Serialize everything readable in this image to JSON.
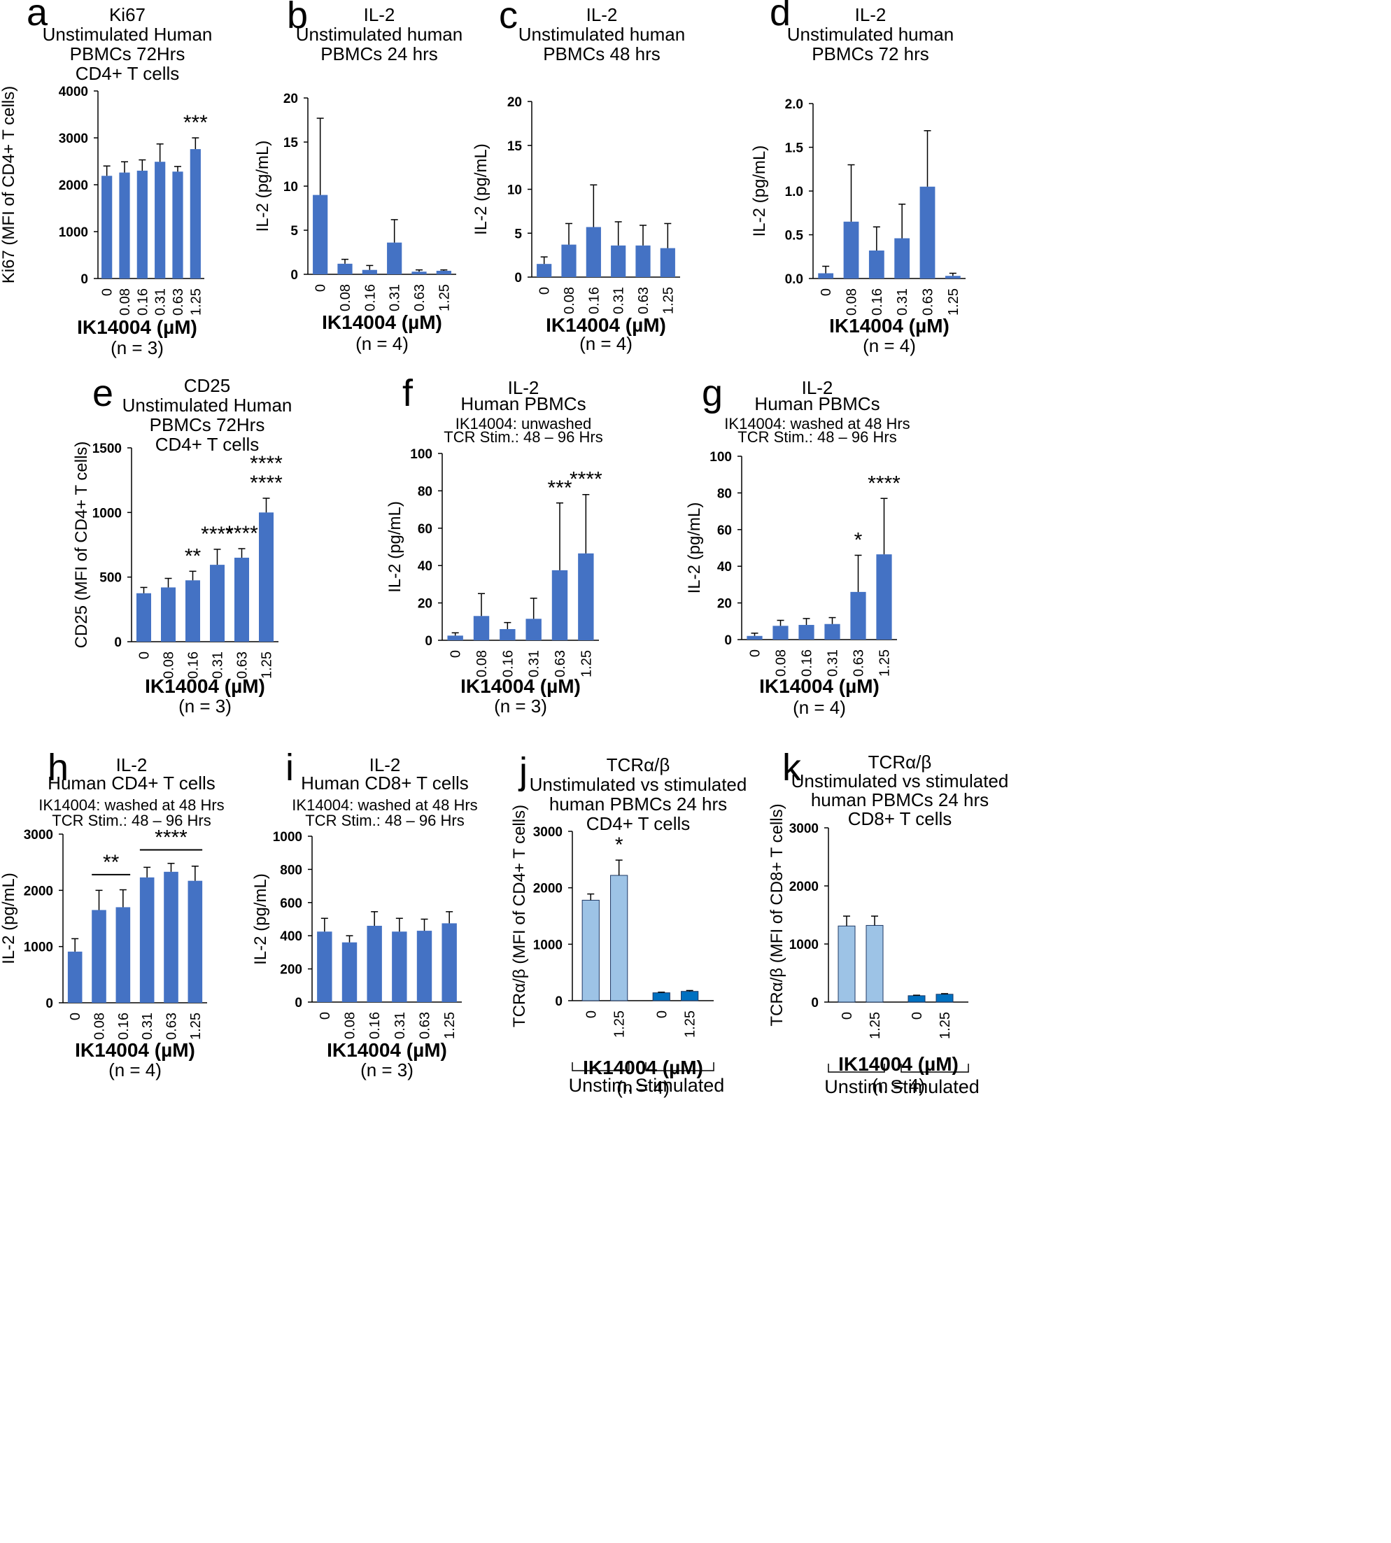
{
  "colors": {
    "bar": "#4472c4",
    "unstim_bar": "#9dc3e6",
    "stim_bar": "#0070c0",
    "axis": "#000000"
  },
  "xlabel": "IK14004 (µM)",
  "chart_data": [
    {
      "id": "a",
      "type": "bar",
      "letter": "a",
      "title": [
        "Ki67",
        "Unstimulated Human",
        "PBMCs 72Hrs",
        "CD4+  T cells"
      ],
      "ylabel": "Ki67 (MFI of CD4+ T cells)",
      "categories": [
        "0",
        "0.08",
        "0.16",
        "0.31",
        "0.63",
        "1.25"
      ],
      "values": [
        2190,
        2260,
        2300,
        2490,
        2280,
        2760
      ],
      "errors": [
        210,
        230,
        230,
        380,
        110,
        240
      ],
      "ylim": [
        0,
        4000
      ],
      "yticks": [
        "0",
        "1000",
        "2000",
        "3000",
        "4000"
      ],
      "stars": [
        {
          "index": 5,
          "text": "***"
        }
      ],
      "n": "(n = 3)"
    },
    {
      "id": "b",
      "type": "bar",
      "letter": "b",
      "title": [
        "IL-2",
        "Unstimulated human",
        "PBMCs 24 hrs"
      ],
      "ylabel": "IL-2 (pg/mL)",
      "categories": [
        "0",
        "0.08",
        "0.16",
        "0.31",
        "0.63",
        "1.25"
      ],
      "values": [
        9.0,
        1.2,
        0.5,
        3.6,
        0.3,
        0.4
      ],
      "errors": [
        8.7,
        0.5,
        0.5,
        2.6,
        0.2,
        0.1
      ],
      "ylim": [
        0,
        20
      ],
      "yticks": [
        "0",
        "5",
        "10",
        "15",
        "20"
      ],
      "stars": [],
      "n": "(n = 4)"
    },
    {
      "id": "c",
      "type": "bar",
      "letter": "c",
      "title": [
        "IL-2",
        "Unstimulated human",
        "PBMCs 48 hrs"
      ],
      "ylabel": "IL-2 (pg/mL)",
      "categories": [
        "0",
        "0.08",
        "0.16",
        "0.31",
        "0.63",
        "1.25"
      ],
      "values": [
        1.5,
        3.7,
        5.7,
        3.6,
        3.6,
        3.3
      ],
      "errors": [
        0.8,
        2.4,
        4.8,
        2.7,
        2.3,
        2.8
      ],
      "ylim": [
        0,
        20
      ],
      "yticks": [
        "0",
        "5",
        "10",
        "15",
        "20"
      ],
      "stars": [],
      "n": "(n = 4)"
    },
    {
      "id": "d",
      "type": "bar",
      "letter": "d",
      "title": [
        "IL-2",
        "Unstimulated human",
        "PBMCs 72 hrs"
      ],
      "ylabel": "IL-2 (pg/mL)",
      "categories": [
        "0",
        "0.08",
        "0.16",
        "0.31",
        "0.63",
        "1.25"
      ],
      "values": [
        0.06,
        0.65,
        0.32,
        0.46,
        1.05,
        0.03
      ],
      "errors": [
        0.08,
        0.65,
        0.27,
        0.39,
        0.64,
        0.03
      ],
      "ylim": [
        0,
        2.0
      ],
      "yticks": [
        "0.0",
        "0.5",
        "1.0",
        "1.5",
        "2.0"
      ],
      "stars": [],
      "n": "(n = 4)"
    },
    {
      "id": "e",
      "type": "bar",
      "letter": "e",
      "title": [
        "CD25",
        "Unstimulated Human",
        "PBMCs 72Hrs",
        "CD4+  T cells"
      ],
      "ylabel": "CD25 (MFI of CD4+ T cells)",
      "categories": [
        "0",
        "0.08",
        "0.16",
        "0.31",
        "0.63",
        "1.25"
      ],
      "values": [
        375,
        420,
        475,
        595,
        650,
        1000
      ],
      "errors": [
        45,
        70,
        70,
        120,
        70,
        110
      ],
      "ylim": [
        0,
        1500
      ],
      "yticks": [
        "0",
        "500",
        "1000",
        "1500"
      ],
      "stars": [
        {
          "index": 2,
          "text": "**"
        },
        {
          "index": 3,
          "text": "****"
        },
        {
          "index": 4,
          "text": "****"
        },
        {
          "index": 5,
          "text": "****"
        },
        {
          "index": 5,
          "text": "****",
          "row": 2
        }
      ],
      "n": "(n = 3)"
    },
    {
      "id": "f",
      "type": "bar",
      "letter": "f",
      "title": [
        "IL-2",
        "Human PBMCs",
        "IK14004: unwashed",
        "TCR Stim.: 48 – 96 Hrs"
      ],
      "ylabel": "IL-2 (pg/mL)",
      "categories": [
        "0",
        "0.08",
        "0.16",
        "0.31",
        "0.63",
        "1.25"
      ],
      "values": [
        2.5,
        13,
        6,
        11.5,
        37.5,
        46.5
      ],
      "errors": [
        1.5,
        12,
        3.5,
        11,
        36,
        31.5
      ],
      "ylim": [
        0,
        100
      ],
      "yticks": [
        "0",
        "20",
        "40",
        "60",
        "80",
        "100"
      ],
      "stars": [
        {
          "index": 4,
          "text": "***"
        },
        {
          "index": 5,
          "text": "****"
        }
      ],
      "n": "(n = 3)"
    },
    {
      "id": "g",
      "type": "bar",
      "letter": "g",
      "title": [
        "IL-2",
        "Human PBMCs",
        "IK14004:  washed at 48 Hrs",
        "TCR Stim.: 48 – 96 Hrs"
      ],
      "ylabel": "IL-2 (pg/mL)",
      "categories": [
        "0",
        "0.08",
        "0.16",
        "0.31",
        "0.63",
        "1.25"
      ],
      "values": [
        2,
        7.5,
        8,
        8.5,
        26,
        46.5
      ],
      "errors": [
        1.5,
        3,
        3.5,
        3.5,
        20,
        30.5
      ],
      "ylim": [
        0,
        100
      ],
      "yticks": [
        "0",
        "20",
        "40",
        "60",
        "80",
        "100"
      ],
      "stars": [
        {
          "index": 4,
          "text": "*"
        },
        {
          "index": 5,
          "text": "****"
        }
      ],
      "n": "(n = 4)"
    },
    {
      "id": "h",
      "type": "bar",
      "letter": "h",
      "title": [
        "IL-2",
        "Human CD4+ T cells",
        "IK14004:  washed at 48 Hrs",
        "TCR Stim.: 48 – 96 Hrs"
      ],
      "ylabel": "IL-2 (pg/mL)",
      "categories": [
        "0",
        "0.08",
        "0.16",
        "0.31",
        "0.63",
        "1.25"
      ],
      "values": [
        910,
        1650,
        1700,
        2230,
        2330,
        2170
      ],
      "errors": [
        230,
        350,
        310,
        180,
        150,
        260
      ],
      "ylim": [
        0,
        3000
      ],
      "yticks": [
        "0",
        "1000",
        "2000",
        "3000"
      ],
      "stars": [],
      "brackets": [
        {
          "from": 1,
          "to": 2,
          "text": "**",
          "y": 2280
        },
        {
          "from": 3,
          "to": 5,
          "text": "****",
          "y": 2720
        }
      ],
      "n": "(n = 4)"
    },
    {
      "id": "i",
      "type": "bar",
      "letter": "i",
      "title": [
        "IL-2",
        "Human CD8+ T cells",
        "IK14004:  washed at 48 Hrs",
        "TCR Stim.: 48 – 96 Hrs"
      ],
      "ylabel": "IL-2 (pg/mL)",
      "categories": [
        "0",
        "0.08",
        "0.16",
        "0.31",
        "0.63",
        "1.25"
      ],
      "values": [
        425,
        360,
        460,
        425,
        430,
        475
      ],
      "errors": [
        80,
        40,
        85,
        80,
        70,
        70
      ],
      "ylim": [
        0,
        1000
      ],
      "yticks": [
        "0",
        "200",
        "400",
        "600",
        "800",
        "1000"
      ],
      "stars": [],
      "n": "(n = 3)"
    },
    {
      "id": "j",
      "type": "bar",
      "letter": "j",
      "title": [
        "TCRα/β",
        "Unstimulated vs stimulated",
        "human PBMCs 24 hrs",
        "CD4+ T cells"
      ],
      "ylabel": "TCRα/β  (MFI of CD4+ T cells)",
      "categories": [
        "0",
        "1.25",
        "0",
        "1.25"
      ],
      "values": [
        1780,
        2220,
        140,
        165
      ],
      "errors": [
        110,
        270,
        10,
        15
      ],
      "groups": [
        "Unstim.",
        "Stimulated"
      ],
      "ylim": [
        0,
        3000
      ],
      "yticks": [
        "0",
        "1000",
        "2000",
        "3000"
      ],
      "stars": [
        {
          "index": 1,
          "text": "*"
        }
      ],
      "n": "(n = 4)"
    },
    {
      "id": "k",
      "type": "bar",
      "letter": "k",
      "title": [
        "TCRα/β",
        "Unstimulated vs stimulated",
        "human PBMCs 24 hrs",
        "CD8+ T cells"
      ],
      "ylabel": "TCRα/β  (MFI of CD8+ T cells)",
      "categories": [
        "0",
        "1.25",
        "0",
        "1.25"
      ],
      "values": [
        1310,
        1320,
        110,
        135
      ],
      "errors": [
        170,
        160,
        8,
        10
      ],
      "groups": [
        "Unstim.",
        "Stimulated"
      ],
      "ylim": [
        0,
        3000
      ],
      "yticks": [
        "0",
        "1000",
        "2000",
        "3000"
      ],
      "stars": [],
      "n": "(n = 4)"
    }
  ]
}
